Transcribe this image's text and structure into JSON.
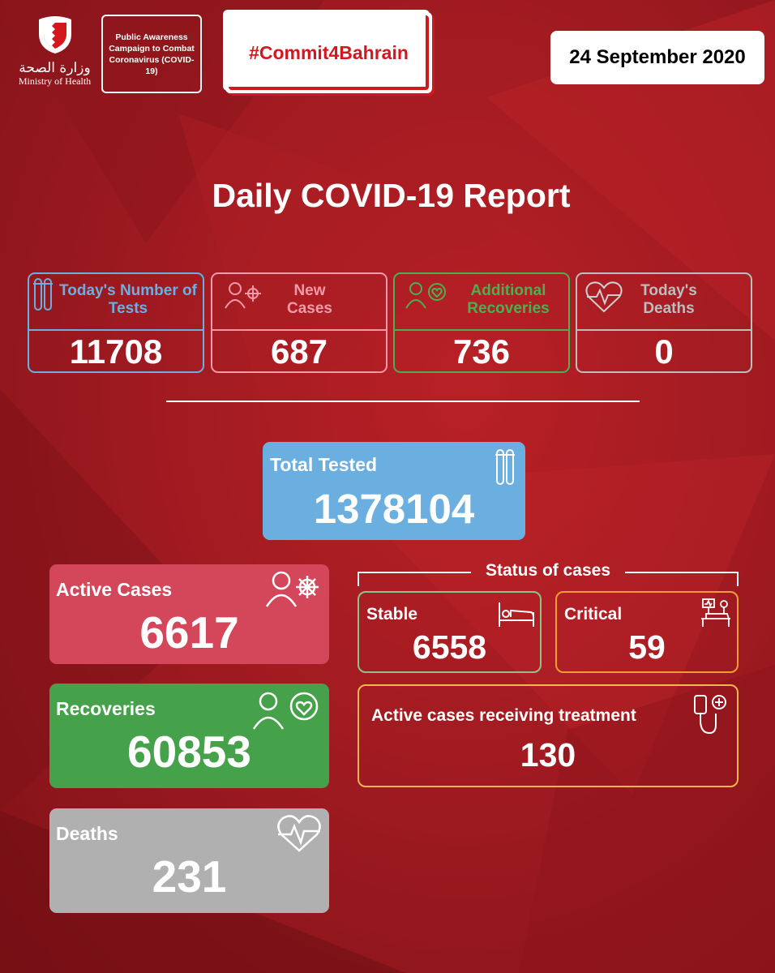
{
  "header": {
    "ministry_ar": "وزارة الصحة",
    "ministry_en": "Ministry of Health",
    "campaign_text": "Public Awareness Campaign to Combat Coronavirus (COVID-19)",
    "hashtag": "#Commit4Bahrain",
    "date": "24 September 2020"
  },
  "title": "Daily COVID-19 Report",
  "daily_stats": [
    {
      "label": "Today's Number of Tests",
      "value": "11708",
      "color": "#6aafe0",
      "icon": "test-tubes-icon"
    },
    {
      "label": "New Cases",
      "value": "687",
      "color": "#f39aa8",
      "icon": "person-virus-icon"
    },
    {
      "label": "Additional Recoveries",
      "value": "736",
      "color": "#4caf50",
      "icon": "person-heart-icon"
    },
    {
      "label": "Today's Deaths",
      "value": "0",
      "color": "#bdbdbd",
      "icon": "heartbeat-icon"
    }
  ],
  "total_tested": {
    "label": "Total Tested",
    "value": "1378104",
    "color": "#6aafe0"
  },
  "cumulative": [
    {
      "label": "Active Cases",
      "value": "6617",
      "color": "#d4475a",
      "icon": "person-virus-icon"
    },
    {
      "label": "Recoveries",
      "value": "60853",
      "color": "#46a24a",
      "icon": "person-heart-icon"
    },
    {
      "label": "Deaths",
      "value": "231",
      "color": "#b0b0b0",
      "icon": "heartbeat-icon"
    }
  ],
  "status": {
    "title": "Status of cases",
    "stable": {
      "label": "Stable",
      "value": "6558",
      "color": "#8bc48a"
    },
    "critical": {
      "label": "Critical",
      "value": "59",
      "color": "#f39c33"
    },
    "treatment": {
      "label": "Active cases receiving treatment",
      "value": "130",
      "color": "#f2b84b"
    }
  }
}
